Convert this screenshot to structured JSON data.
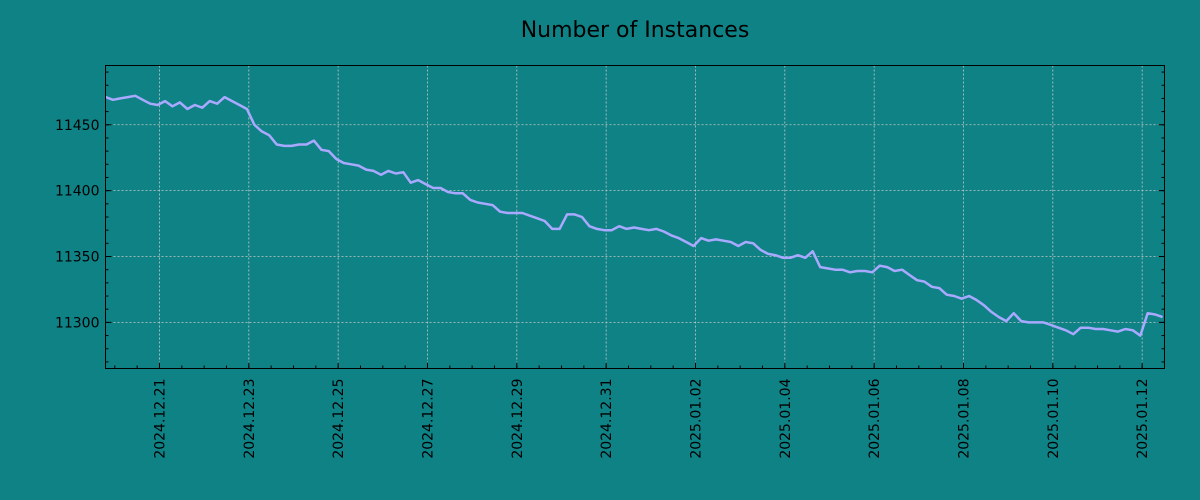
{
  "chart_data": {
    "type": "line",
    "title": "Number of Instances",
    "xlabel": "",
    "ylabel": "",
    "colors": {
      "background": "#0f8286",
      "line": "#a9a9ff",
      "grid": "#c8c8c8",
      "axes": "#000000"
    },
    "grid": true,
    "legend": "none",
    "xlim": [
      "2024-12-19T19:00",
      "2025-01-12T12:00"
    ],
    "ylim": [
      11265,
      11495
    ],
    "yticks": [
      11300,
      11350,
      11400,
      11450
    ],
    "xticks": [
      "2024.12.21",
      "2024.12.23",
      "2024.12.25",
      "2024.12.27",
      "2024.12.29",
      "2024.12.31",
      "2025.01.02",
      "2025.01.04",
      "2025.01.06",
      "2025.01.08",
      "2025.01.10",
      "2025.01.12"
    ],
    "series": [
      {
        "x": [
          "2024-12-19T19:00",
          "2024-12-19T23:00",
          "2024-12-20T03:00",
          "2024-12-20T07:00",
          "2024-12-20T11:00",
          "2024-12-20T15:00",
          "2024-12-20T19:00",
          "2024-12-20T23:00",
          "2024-12-21T03:00",
          "2024-12-21T07:00",
          "2024-12-21T11:00",
          "2024-12-21T15:00",
          "2024-12-21T19:00",
          "2024-12-21T23:00",
          "2024-12-22T03:00",
          "2024-12-22T07:00",
          "2024-12-22T11:00",
          "2024-12-22T15:00",
          "2024-12-22T19:00",
          "2024-12-22T23:00",
          "2024-12-23T03:00",
          "2024-12-23T07:00",
          "2024-12-23T11:00",
          "2024-12-23T15:00",
          "2024-12-23T19:00",
          "2024-12-23T23:00",
          "2024-12-24T03:00",
          "2024-12-24T07:00",
          "2024-12-24T11:00",
          "2024-12-24T15:00",
          "2024-12-24T19:00",
          "2024-12-24T23:00",
          "2024-12-25T03:00",
          "2024-12-25T07:00",
          "2024-12-25T11:00",
          "2024-12-25T15:00",
          "2024-12-25T19:00",
          "2024-12-25T23:00",
          "2024-12-26T03:00",
          "2024-12-26T07:00",
          "2024-12-26T11:00",
          "2024-12-26T15:00",
          "2024-12-26T19:00",
          "2024-12-26T23:00",
          "2024-12-27T03:00",
          "2024-12-27T07:00",
          "2024-12-27T11:00",
          "2024-12-27T15:00",
          "2024-12-27T19:00",
          "2024-12-27T23:00",
          "2024-12-28T03:00",
          "2024-12-28T07:00",
          "2024-12-28T11:00",
          "2024-12-28T15:00",
          "2024-12-28T19:00",
          "2024-12-28T23:00",
          "2024-12-29T03:00",
          "2024-12-29T07:00",
          "2024-12-29T11:00",
          "2024-12-29T15:00",
          "2024-12-29T19:00",
          "2024-12-29T23:00",
          "2024-12-30T03:00",
          "2024-12-30T07:00",
          "2024-12-30T11:00",
          "2024-12-30T15:00",
          "2024-12-30T19:00",
          "2024-12-30T23:00",
          "2024-12-31T03:00",
          "2024-12-31T07:00",
          "2024-12-31T11:00",
          "2024-12-31T15:00",
          "2024-12-31T19:00",
          "2024-12-31T23:00",
          "2025-01-01T03:00",
          "2025-01-01T07:00",
          "2025-01-01T11:00",
          "2025-01-01T15:00",
          "2025-01-01T19:00",
          "2025-01-01T23:00",
          "2025-01-02T03:00",
          "2025-01-02T07:00",
          "2025-01-02T11:00",
          "2025-01-02T15:00",
          "2025-01-02T19:00",
          "2025-01-02T23:00",
          "2025-01-03T03:00",
          "2025-01-03T07:00",
          "2025-01-03T11:00",
          "2025-01-03T15:00",
          "2025-01-03T19:00",
          "2025-01-03T23:00",
          "2025-01-04T03:00",
          "2025-01-04T07:00",
          "2025-01-04T11:00",
          "2025-01-04T15:00",
          "2025-01-04T19:00",
          "2025-01-04T23:00",
          "2025-01-05T03:00",
          "2025-01-05T07:00",
          "2025-01-05T11:00",
          "2025-01-05T15:00",
          "2025-01-05T19:00",
          "2025-01-05T23:00",
          "2025-01-06T03:00",
          "2025-01-06T07:00",
          "2025-01-06T11:00",
          "2025-01-06T15:00",
          "2025-01-06T19:00",
          "2025-01-06T23:00",
          "2025-01-07T03:00",
          "2025-01-07T07:00",
          "2025-01-07T11:00",
          "2025-01-07T15:00",
          "2025-01-07T19:00",
          "2025-01-07T23:00",
          "2025-01-08T03:00",
          "2025-01-08T07:00",
          "2025-01-08T11:00",
          "2025-01-08T15:00",
          "2025-01-08T19:00",
          "2025-01-08T23:00",
          "2025-01-09T03:00",
          "2025-01-09T07:00",
          "2025-01-09T11:00",
          "2025-01-09T15:00",
          "2025-01-09T19:00",
          "2025-01-09T23:00",
          "2025-01-10T03:00",
          "2025-01-10T07:00",
          "2025-01-10T11:00",
          "2025-01-10T15:00",
          "2025-01-10T19:00",
          "2025-01-10T23:00",
          "2025-01-11T03:00",
          "2025-01-11T07:00",
          "2025-01-11T11:00",
          "2025-01-11T15:00",
          "2025-01-11T19:00",
          "2025-01-11T23:00",
          "2025-01-12T03:00",
          "2025-01-12T07:00",
          "2025-01-12T11:00"
        ],
        "y": [
          11471,
          11469,
          11470,
          11471,
          11472,
          11469,
          11466,
          11465,
          11468,
          11464,
          11467,
          11462,
          11465,
          11463,
          11468,
          11466,
          11471,
          11468,
          11465,
          11462,
          11450,
          11445,
          11442,
          11435,
          11434,
          11434,
          11435,
          11435,
          11438,
          11431,
          11430,
          11424,
          11421,
          11420,
          11419,
          11416,
          11415,
          11412,
          11415,
          11413,
          11414,
          11406,
          11408,
          11405,
          11402,
          11402,
          11399,
          11398,
          11398,
          11393,
          11391,
          11390,
          11389,
          11384,
          11383,
          11383,
          11383,
          11381,
          11379,
          11377,
          11371,
          11371,
          11382,
          11382,
          11380,
          11373,
          11371,
          11370,
          11370,
          11373,
          11371,
          11372,
          11371,
          11370,
          11371,
          11369,
          11366,
          11364,
          11361,
          11358,
          11364,
          11362,
          11363,
          11362,
          11361,
          11358,
          11361,
          11360,
          11355,
          11352,
          11351,
          11349,
          11349,
          11351,
          11349,
          11354,
          11342,
          11341,
          11340,
          11340,
          11338,
          11339,
          11339,
          11338,
          11343,
          11342,
          11339,
          11340,
          11336,
          11332,
          11331,
          11327,
          11326,
          11321,
          11320,
          11318,
          11320,
          11317,
          11313,
          11308,
          11304,
          11301,
          11307,
          11301,
          11300,
          11300,
          11300,
          11298,
          11296,
          11294,
          11291,
          11296,
          11296,
          11295,
          11295,
          11294,
          11293,
          11295,
          11294,
          11290,
          11307,
          11306,
          11304
        ]
      }
    ]
  }
}
